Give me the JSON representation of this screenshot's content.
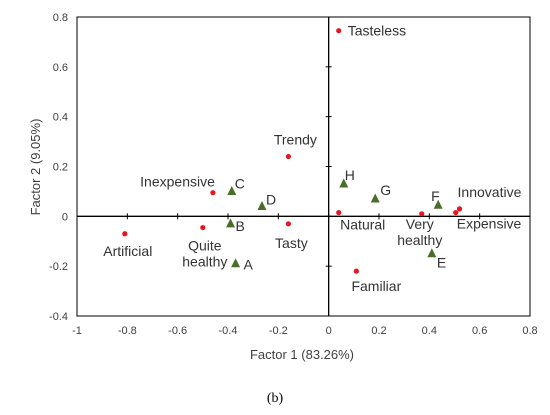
{
  "chart_data": {
    "type": "scatter",
    "xlabel": "Factor 1 (83.26%)",
    "ylabel": "Factor  2 (9.05%)",
    "xlim": [
      -1,
      0.8
    ],
    "ylim": [
      -0.4,
      0.8
    ],
    "xticks": [
      "-1",
      "-0.8",
      "-0.6",
      "-0.4",
      "-0.2",
      "0",
      "0.2",
      "0.4",
      "0.6",
      "0.8"
    ],
    "yticks": [
      "-0.4",
      "-0.2",
      "0",
      "0.2",
      "0.4",
      "0.6",
      "0.8"
    ],
    "grid": false,
    "series": [
      {
        "marker": "circle",
        "color": "#e8141e",
        "points": [
          {
            "label": "Tasteless",
            "x": 0.04,
            "y": 0.745
          },
          {
            "label": "Trendy",
            "x": -0.16,
            "y": 0.24
          },
          {
            "label": "Inexpensive",
            "x": -0.46,
            "y": 0.095
          },
          {
            "label": "Artificial",
            "x": -0.81,
            "y": -0.07
          },
          {
            "label": "Quite healthy",
            "x": -0.5,
            "y": -0.045
          },
          {
            "label": "Tasty",
            "x": -0.16,
            "y": -0.03
          },
          {
            "label": "Natural",
            "x": 0.04,
            "y": 0.015
          },
          {
            "label": "Familiar",
            "x": 0.11,
            "y": -0.22
          },
          {
            "label": "Very healthy",
            "x": 0.37,
            "y": 0.01
          },
          {
            "label": "Innovative",
            "x": 0.52,
            "y": 0.03
          },
          {
            "label": "Expensive",
            "x": 0.505,
            "y": 0.015
          }
        ]
      },
      {
        "marker": "triangle",
        "color": "#4a6e2a",
        "points": [
          {
            "label": "A",
            "x": -0.37,
            "y": -0.19
          },
          {
            "label": "B",
            "x": -0.39,
            "y": -0.03
          },
          {
            "label": "C",
            "x": -0.385,
            "y": 0.1
          },
          {
            "label": "D",
            "x": -0.265,
            "y": 0.04
          },
          {
            "label": "E",
            "x": 0.41,
            "y": -0.15
          },
          {
            "label": "F",
            "x": 0.435,
            "y": 0.045
          },
          {
            "label": "G",
            "x": 0.185,
            "y": 0.07
          },
          {
            "label": "H",
            "x": 0.06,
            "y": 0.13
          }
        ]
      }
    ]
  },
  "caption": "(b)"
}
